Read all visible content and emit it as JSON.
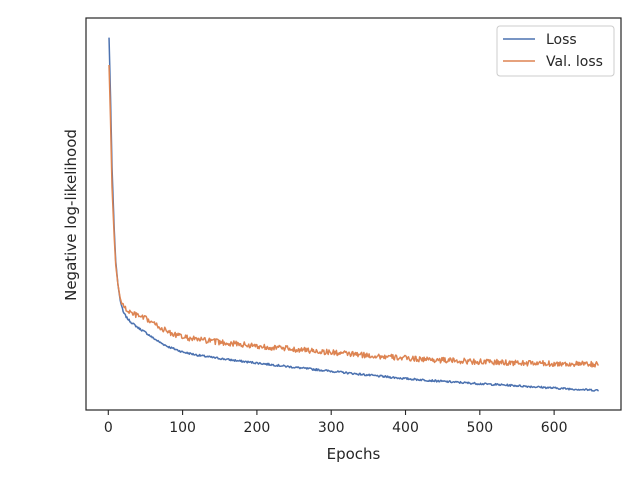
{
  "chart_data": {
    "type": "line",
    "title": "",
    "xlabel": "Epochs",
    "ylabel": "Negative log-likelihood",
    "xlim": [
      -30,
      690
    ],
    "ylim": [
      0,
      100
    ],
    "x_ticks": [
      0,
      100,
      200,
      300,
      400,
      500,
      600
    ],
    "x_tick_labels": [
      "0",
      "100",
      "200",
      "300",
      "400",
      "500",
      "600"
    ],
    "y_ticks_labeled": false,
    "grid": false,
    "legend_position": "top-right",
    "series": [
      {
        "name": "Loss",
        "color": "#4c72b0",
        "noise": 0.25,
        "x": [
          1,
          3,
          5,
          8,
          10,
          13,
          16,
          20,
          25,
          30,
          40,
          50,
          60,
          70,
          80,
          90,
          100,
          120,
          140,
          160,
          180,
          200,
          250,
          300,
          350,
          400,
          450,
          500,
          550,
          600,
          640,
          660
        ],
        "y": [
          95,
          80,
          62,
          46,
          38,
          32,
          28,
          25,
          23.5,
          22.5,
          21,
          19.8,
          18.4,
          17.2,
          16.2,
          15.5,
          14.8,
          14.0,
          13.4,
          12.9,
          12.4,
          12.0,
          10.9,
          9.9,
          8.9,
          8.0,
          7.3,
          6.7,
          6.2,
          5.6,
          5.2,
          5.0
        ]
      },
      {
        "name": "Val. loss",
        "color": "#dd8452",
        "noise": 0.45,
        "x": [
          1,
          3,
          5,
          8,
          10,
          13,
          16,
          20,
          25,
          30,
          40,
          50,
          60,
          70,
          80,
          90,
          100,
          120,
          140,
          160,
          180,
          200,
          250,
          300,
          350,
          400,
          450,
          500,
          550,
          600,
          640,
          660
        ],
        "y": [
          88,
          74,
          57,
          44,
          37,
          32,
          28.5,
          26.5,
          25.5,
          24.8,
          24,
          23.3,
          22.2,
          21.0,
          20.0,
          19.2,
          18.6,
          18.0,
          17.5,
          17.1,
          16.7,
          16.3,
          15.5,
          14.7,
          13.9,
          13.2,
          12.7,
          12.3,
          12.0,
          11.8,
          11.7,
          11.6
        ]
      }
    ]
  }
}
